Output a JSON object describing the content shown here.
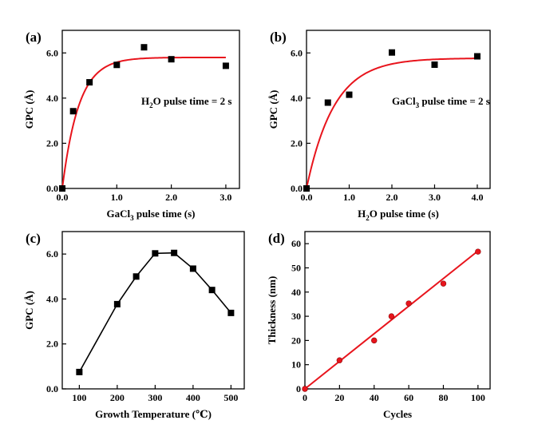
{
  "chart_data": [
    {
      "panel": "(a)",
      "type": "scatter",
      "xlabel": "GaCl",
      "xlabel_sub": "3",
      "xlabel_tail": " pulse time (s)",
      "ylabel": "GPC (Å)",
      "xlim": [
        0,
        3.25
      ],
      "ylim": [
        0,
        7.0
      ],
      "xticks": [
        0.0,
        1.0,
        2.0,
        3.0
      ],
      "xtick_labels": [
        "0.0",
        "1.0",
        "2.0",
        "3.0"
      ],
      "yticks": [
        0.0,
        2.0,
        4.0,
        6.0
      ],
      "ytick_labels": [
        "0.0",
        "2.0",
        "4.0",
        "6.0"
      ],
      "marker": "square",
      "marker_color": "#000000",
      "points": [
        {
          "x": 0.0,
          "y": 0.0
        },
        {
          "x": 0.2,
          "y": 3.42
        },
        {
          "x": 0.5,
          "y": 4.7
        },
        {
          "x": 1.0,
          "y": 5.47
        },
        {
          "x": 1.5,
          "y": 6.25
        },
        {
          "x": 2.0,
          "y": 5.72
        },
        {
          "x": 3.0,
          "y": 5.43
        }
      ],
      "fit": {
        "color": "#e8141c",
        "model": "saturation",
        "a": 5.8,
        "k": 3.3,
        "x_range": [
          0,
          3.0
        ]
      },
      "annotation": {
        "pre": "H",
        "sub": "2",
        "post": "O pulse time = 2 s"
      }
    },
    {
      "panel": "(b)",
      "type": "scatter",
      "xlabel": "H",
      "xlabel_sub": "2",
      "xlabel_tail": "O pulse time (s)",
      "ylabel": "GPC (Å)",
      "xlim": [
        0,
        4.3
      ],
      "ylim": [
        0,
        7.0
      ],
      "xticks": [
        0.0,
        1.0,
        2.0,
        3.0,
        4.0
      ],
      "xtick_labels": [
        "0.0",
        "1.0",
        "2.0",
        "3.0",
        "4.0"
      ],
      "yticks": [
        0.0,
        2.0,
        4.0,
        6.0
      ],
      "ytick_labels": [
        "0.0",
        "2.0",
        "4.0",
        "6.0"
      ],
      "marker": "square",
      "marker_color": "#000000",
      "points": [
        {
          "x": 0.0,
          "y": 0.0
        },
        {
          "x": 0.5,
          "y": 3.8
        },
        {
          "x": 1.0,
          "y": 4.15
        },
        {
          "x": 2.0,
          "y": 6.02
        },
        {
          "x": 3.0,
          "y": 5.48
        },
        {
          "x": 4.0,
          "y": 5.85
        }
      ],
      "fit": {
        "color": "#e8141c",
        "model": "saturation",
        "a": 5.77,
        "k": 1.55,
        "x_range": [
          0,
          4.0
        ]
      },
      "annotation": {
        "pre": "GaCl",
        "sub": "3",
        "post": " pulse time = 2 s"
      }
    },
    {
      "panel": "(c)",
      "type": "line",
      "xlabel": "Growth Temperature (℃)",
      "ylabel": "GPC (Å)",
      "xlim": [
        55,
        535
      ],
      "ylim": [
        0,
        7.0
      ],
      "xticks": [
        100,
        200,
        300,
        400,
        500
      ],
      "xtick_labels": [
        "100",
        "200",
        "300",
        "400",
        "500"
      ],
      "yticks": [
        0.0,
        2.0,
        4.0,
        6.0
      ],
      "ytick_labels": [
        "0.0",
        "2.0",
        "4.0",
        "6.0"
      ],
      "marker": "square",
      "line_color": "#000000",
      "points": [
        {
          "x": 100,
          "y": 0.75
        },
        {
          "x": 200,
          "y": 3.77
        },
        {
          "x": 250,
          "y": 5.0
        },
        {
          "x": 300,
          "y": 6.03
        },
        {
          "x": 350,
          "y": 6.05
        },
        {
          "x": 400,
          "y": 5.35
        },
        {
          "x": 450,
          "y": 4.4
        },
        {
          "x": 500,
          "y": 3.38
        }
      ]
    },
    {
      "panel": "(d)",
      "type": "scatter",
      "xlabel": "Cycles",
      "ylabel": "Thickness (nm)",
      "xlim": [
        0,
        107
      ],
      "ylim": [
        0,
        65
      ],
      "xticks": [
        0,
        20,
        40,
        60,
        80,
        100
      ],
      "xtick_labels": [
        "0",
        "20",
        "40",
        "60",
        "80",
        "100"
      ],
      "yticks": [
        0,
        10,
        20,
        30,
        40,
        50,
        60
      ],
      "ytick_labels": [
        "0",
        "10",
        "20",
        "30",
        "40",
        "50",
        "60"
      ],
      "marker": "circle",
      "marker_color": "#e8141c",
      "points": [
        {
          "x": 0,
          "y": 0
        },
        {
          "x": 20,
          "y": 11.8
        },
        {
          "x": 40,
          "y": 20
        },
        {
          "x": 50,
          "y": 30
        },
        {
          "x": 60,
          "y": 35.3
        },
        {
          "x": 80,
          "y": 43.5
        },
        {
          "x": 100,
          "y": 56.7
        }
      ],
      "fit": {
        "color": "#e8141c",
        "model": "linear",
        "slope": 0.57,
        "intercept": 0,
        "x_range": [
          0,
          100
        ]
      }
    }
  ]
}
